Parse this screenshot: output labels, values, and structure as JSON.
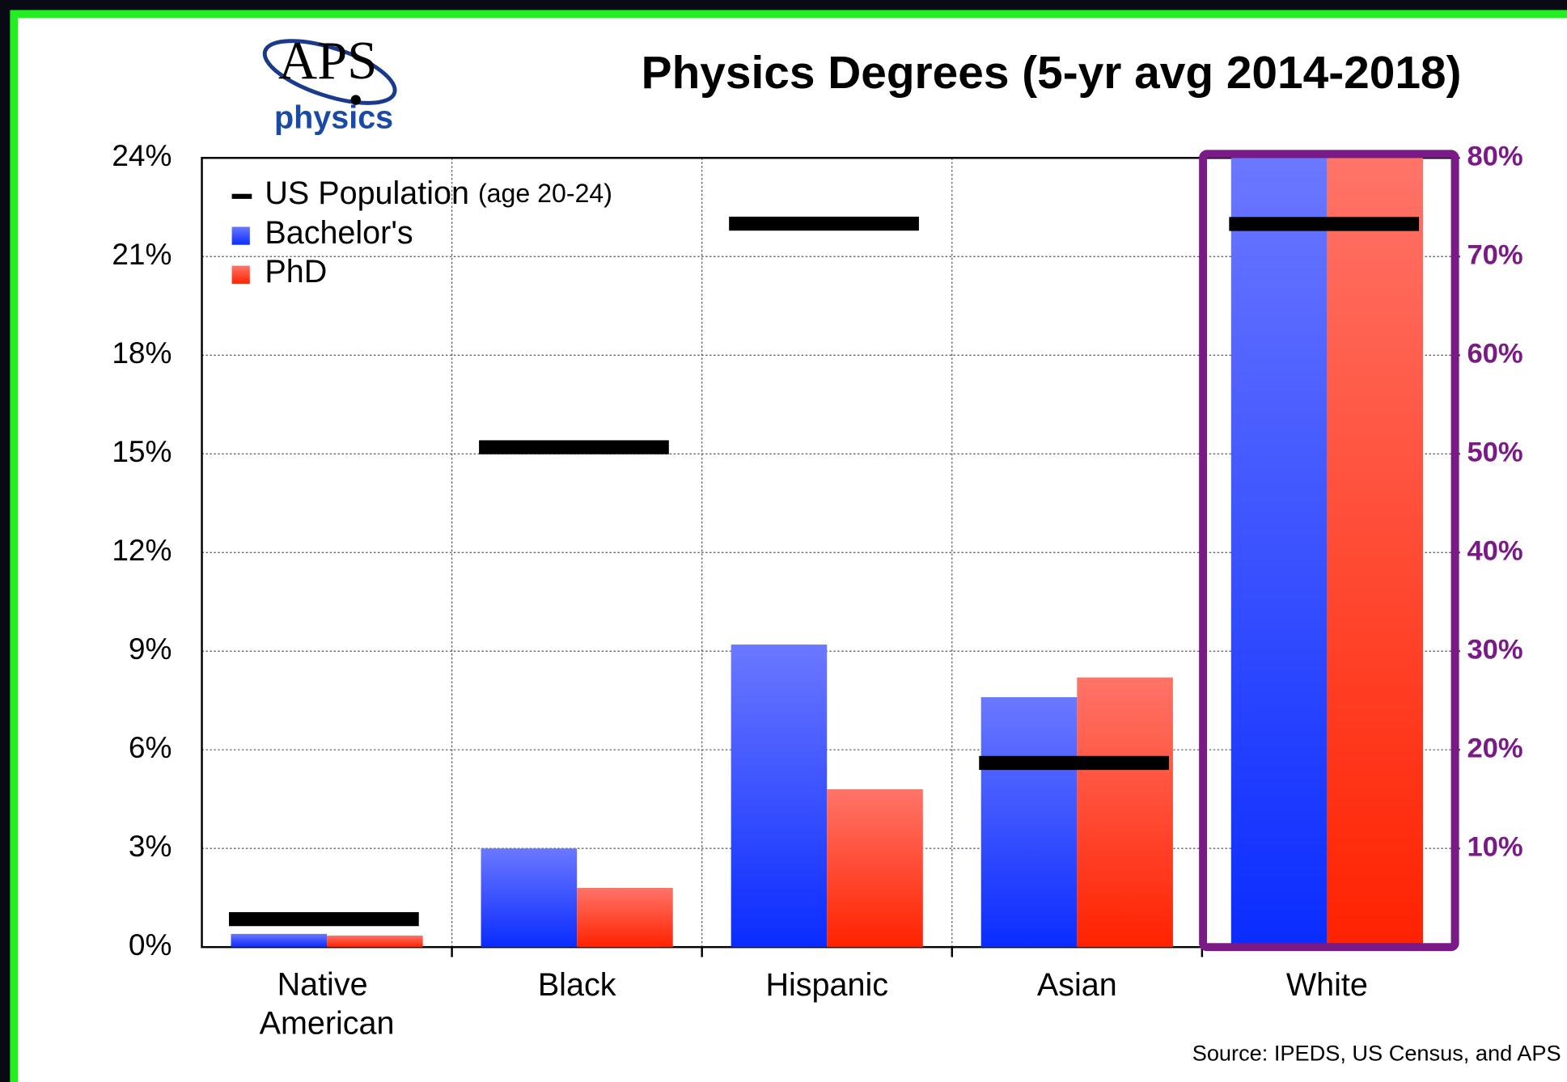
{
  "logo": {
    "mark": "APS",
    "word": "physics"
  },
  "source": "Source: IPEDS, US Census, and APS",
  "chart_data": {
    "type": "bar",
    "title": "Physics Degrees (5-yr avg 2014-2018)",
    "categories": [
      "Native American",
      "Black",
      "Hispanic",
      "Asian",
      "White"
    ],
    "y2_categories": [
      "White"
    ],
    "series": [
      {
        "name": "Bachelor's",
        "color": "#2a45ff",
        "values": [
          0.4,
          3.0,
          9.2,
          7.6,
          80
        ]
      },
      {
        "name": "PhD",
        "color": "#ff3a22",
        "values": [
          0.35,
          1.8,
          4.8,
          8.2,
          80
        ]
      },
      {
        "name": "US Population (age 20-24)",
        "color": "#000000",
        "marker": "dash",
        "values": [
          0.85,
          15.2,
          22.0,
          5.6,
          73.3
        ]
      }
    ],
    "ylim": [
      0,
      24
    ],
    "yticks": [
      {
        "value": 0,
        "label": "0%"
      },
      {
        "value": 3,
        "label": "3%"
      },
      {
        "value": 6,
        "label": "6%"
      },
      {
        "value": 9,
        "label": "9%"
      },
      {
        "value": 12,
        "label": "12%"
      },
      {
        "value": 15,
        "label": "15%"
      },
      {
        "value": 18,
        "label": "18%"
      },
      {
        "value": 21,
        "label": "21%"
      },
      {
        "value": 24,
        "label": "24%"
      }
    ],
    "y2lim": [
      0,
      80
    ],
    "y2ticks": [
      {
        "value": 10,
        "label": "10%"
      },
      {
        "value": 20,
        "label": "20%"
      },
      {
        "value": 30,
        "label": "30%"
      },
      {
        "value": 40,
        "label": "40%"
      },
      {
        "value": 50,
        "label": "50%"
      },
      {
        "value": 60,
        "label": "60%"
      },
      {
        "value": 70,
        "label": "70%"
      },
      {
        "value": 80,
        "label": "80%"
      }
    ],
    "y2color": "#7a1a86",
    "grid": true,
    "legend": "upper left"
  }
}
